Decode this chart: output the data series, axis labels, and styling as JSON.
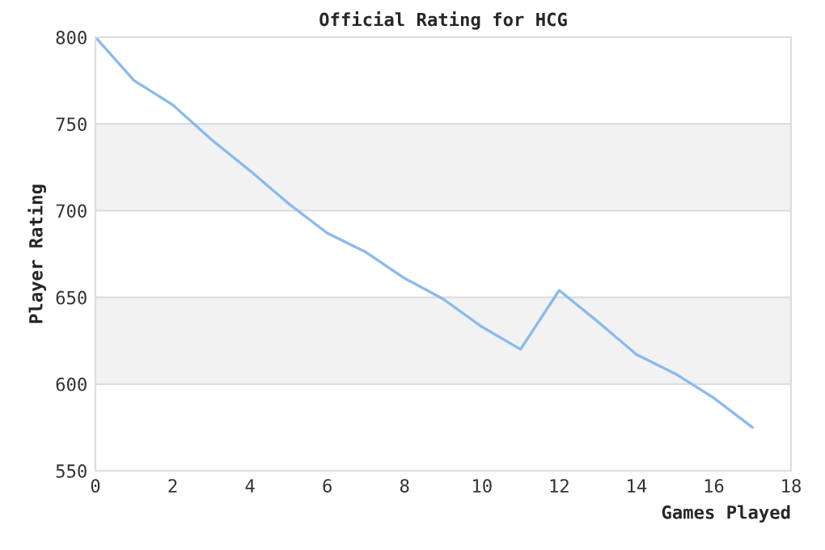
{
  "chart_data": {
    "type": "line",
    "title": "Official Rating for HCG",
    "xlabel": "Games Played",
    "ylabel": "Player Rating",
    "x": [
      0,
      1,
      2,
      3,
      4,
      5,
      6,
      7,
      8,
      9,
      10,
      11,
      12,
      13,
      14,
      15,
      16,
      17
    ],
    "series": [
      {
        "color": "#88bbee",
        "values": [
          800,
          775,
          761,
          741,
          723,
          704,
          687,
          676,
          661,
          649,
          633,
          620,
          654,
          636,
          617,
          606,
          592,
          575
        ]
      }
    ],
    "xlim": [
      0,
      18
    ],
    "xticks": [
      0,
      2,
      4,
      6,
      8,
      10,
      12,
      14,
      16,
      18
    ],
    "ylim": [
      550,
      800
    ],
    "yticks": [
      550,
      600,
      650,
      700,
      750,
      800
    ],
    "bands": [
      {
        "axis": "y",
        "from": 600,
        "to": 650,
        "color": "#f2f2f2"
      },
      {
        "axis": "y",
        "from": 700,
        "to": 750,
        "color": "#f2f2f2"
      }
    ],
    "grid": "y",
    "marker": "none",
    "line_style": "solid",
    "legend": false
  }
}
